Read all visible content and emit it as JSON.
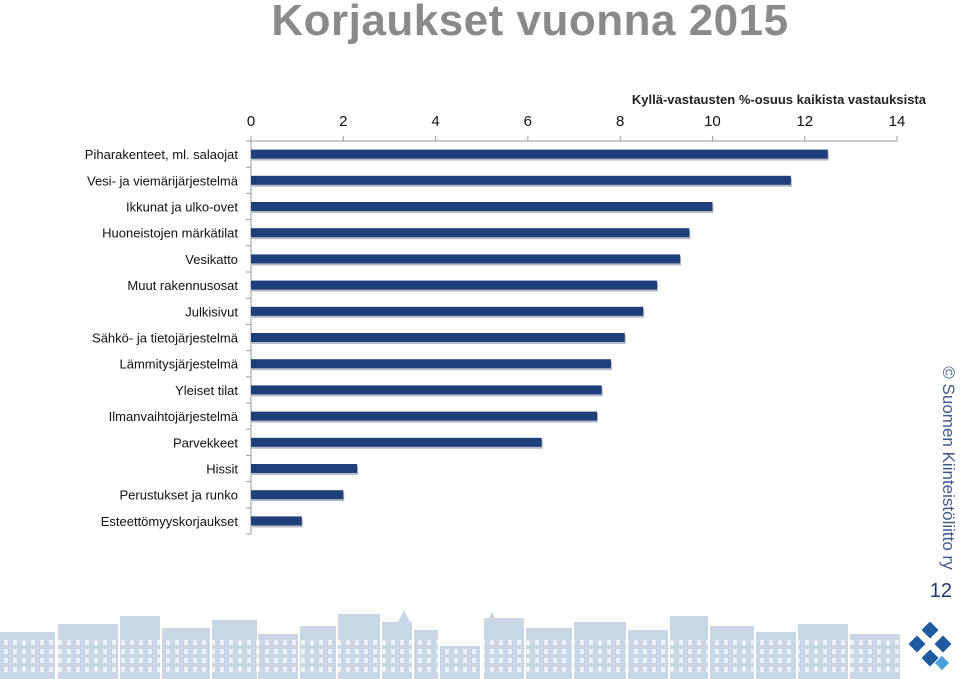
{
  "title": "Korjaukset  vuonna 2015",
  "copyright": "© Suomen Kiinteistöliitto ry",
  "page_number": "12",
  "colors": {
    "bar": "#1f3f7a",
    "title": "#8a8a8a",
    "axis": "#888888",
    "brand": "#1f3a78"
  },
  "chart_data": {
    "type": "bar",
    "orientation": "horizontal",
    "title": "Kyllä-vastausten %-osuus kaikista vastauksista",
    "xlim": [
      0,
      14
    ],
    "ticks": [
      0,
      2,
      4,
      6,
      8,
      10,
      12,
      14
    ],
    "grid": false,
    "categories": [
      "Piharakenteet, ml. salaojat",
      "Vesi- ja viemärijärjestelmä",
      "Ikkunat ja ulko-ovet",
      "Huoneistojen märkätilat",
      "Vesikatto",
      "Muut rakennusosat",
      "Julkisivut",
      "Sähkö- ja tietojärjestelmä",
      "Lämmitysjärjestelmä",
      "Yleiset tilat",
      "Ilmanvaihtojärjestelmä",
      "Parvekkeet",
      "Hissit",
      "Perustukset ja runko",
      "Esteettömyyskorjaukset"
    ],
    "values": [
      12.5,
      11.7,
      10.0,
      9.5,
      9.3,
      8.8,
      8.5,
      8.1,
      7.8,
      7.6,
      7.5,
      6.3,
      2.3,
      2.0,
      1.1
    ]
  }
}
